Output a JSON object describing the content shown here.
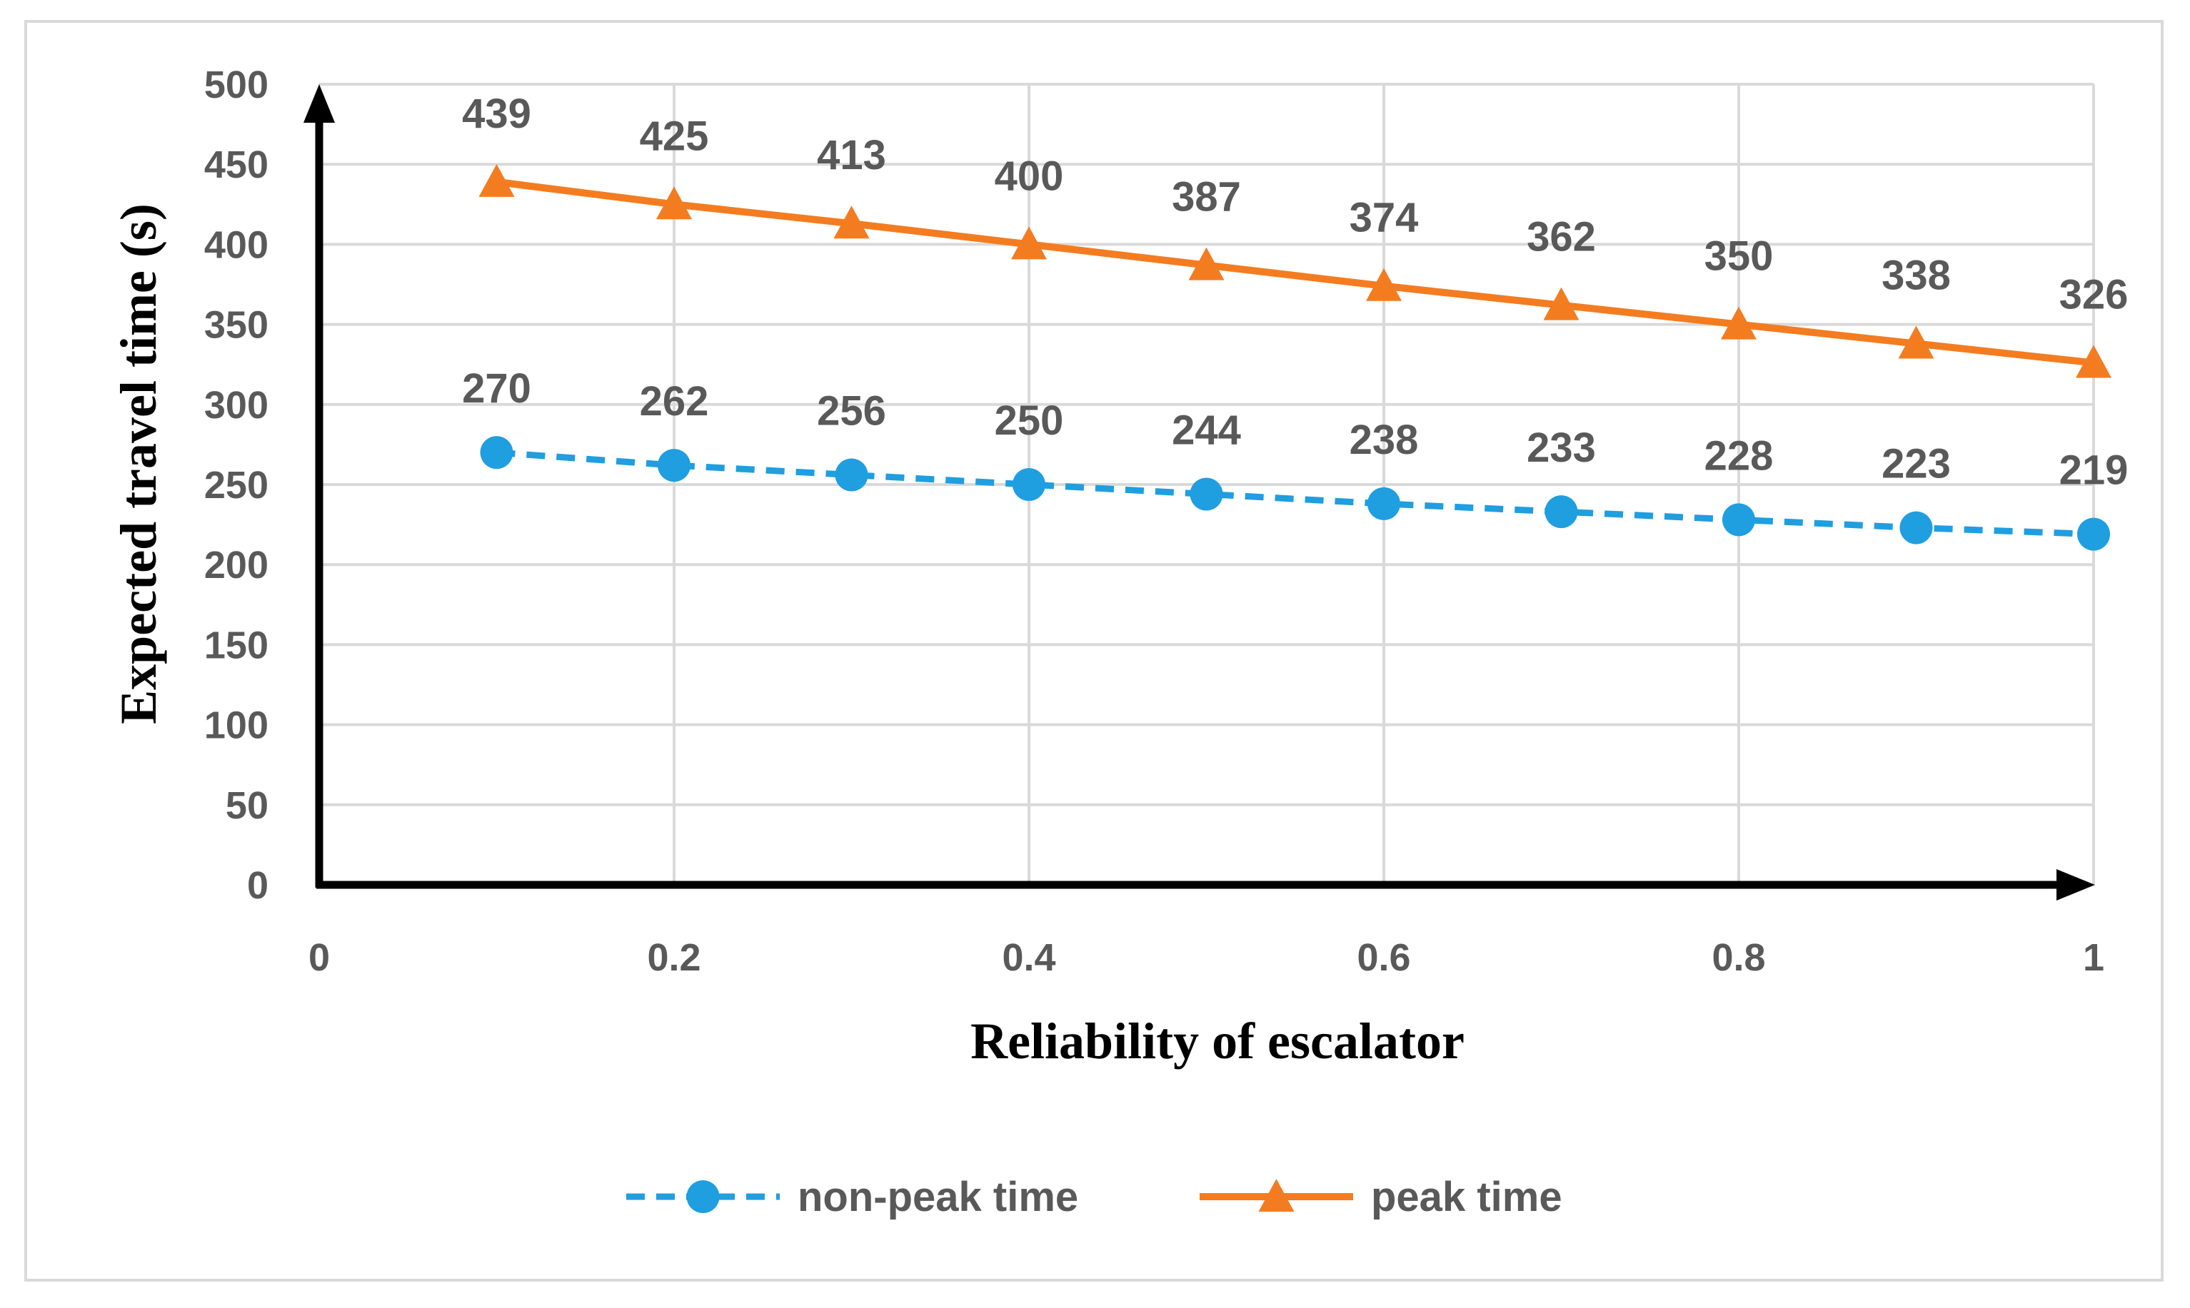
{
  "chart_data": {
    "type": "line",
    "title": "",
    "xlabel": "Reliability of escalator",
    "ylabel": "Expected travel time (s)",
    "xlim": [
      0,
      1
    ],
    "ylim": [
      0,
      500
    ],
    "x_ticks": [
      0,
      0.2,
      0.4,
      0.6,
      0.8,
      1
    ],
    "x_tick_labels": [
      "0",
      "0.2",
      "0.4",
      "0.6",
      "0.8",
      "1"
    ],
    "y_ticks": [
      0,
      50,
      100,
      150,
      200,
      250,
      300,
      350,
      400,
      450,
      500
    ],
    "y_tick_labels": [
      "0",
      "50",
      "100",
      "150",
      "200",
      "250",
      "300",
      "350",
      "400",
      "450",
      "500"
    ],
    "grid": true,
    "legend_position": "bottom",
    "x": [
      0.1,
      0.2,
      0.3,
      0.4,
      0.5,
      0.6,
      0.7,
      0.8,
      0.9,
      1.0
    ],
    "series": [
      {
        "name": "non-peak time",
        "values": [
          270,
          262,
          256,
          250,
          244,
          238,
          233,
          228,
          223,
          219
        ],
        "color": "#1f9ee0",
        "line_style": "dashed",
        "marker": "circle"
      },
      {
        "name": "peak time",
        "values": [
          439,
          425,
          413,
          400,
          387,
          374,
          362,
          350,
          338,
          326
        ],
        "color": "#f47c20",
        "line_style": "solid",
        "marker": "triangle"
      }
    ]
  }
}
